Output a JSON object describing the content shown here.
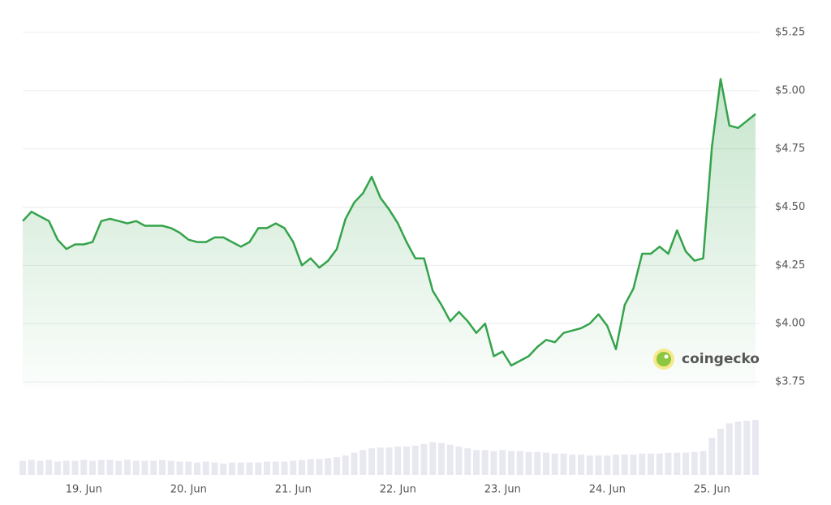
{
  "chart_data": {
    "type": "line",
    "categories": [
      null,
      null,
      null,
      null,
      null,
      null,
      null,
      "19. Jun",
      null,
      null,
      null,
      null,
      null,
      null,
      null,
      null,
      null,
      null,
      null,
      "20. Jun",
      null,
      null,
      null,
      null,
      null,
      null,
      null,
      null,
      null,
      null,
      null,
      "21. Jun",
      null,
      null,
      null,
      null,
      null,
      null,
      null,
      null,
      null,
      null,
      null,
      "22. Jun",
      null,
      null,
      null,
      null,
      null,
      null,
      null,
      null,
      null,
      null,
      null,
      "23. Jun",
      null,
      null,
      null,
      null,
      null,
      null,
      null,
      null,
      null,
      null,
      null,
      "24. Jun",
      null,
      null,
      null,
      null,
      null,
      null,
      null,
      null,
      null,
      null,
      null,
      "25. Jun",
      null,
      null,
      null,
      null,
      null
    ],
    "series": [
      {
        "color": "#34a34a",
        "values": [
          4.44,
          4.48,
          4.46,
          4.44,
          4.36,
          4.32,
          4.34,
          4.34,
          4.35,
          4.44,
          4.45,
          4.44,
          4.43,
          4.44,
          4.42,
          4.42,
          4.42,
          4.41,
          4.39,
          4.36,
          4.35,
          4.35,
          4.37,
          4.37,
          4.35,
          4.33,
          4.35,
          4.41,
          4.41,
          4.43,
          4.41,
          4.35,
          4.25,
          4.28,
          4.24,
          4.27,
          4.32,
          4.45,
          4.52,
          4.56,
          4.63,
          4.54,
          4.49,
          4.43,
          4.35,
          4.28,
          4.28,
          4.14,
          4.08,
          4.01,
          4.05,
          4.01,
          3.96,
          4.0,
          3.86,
          3.88,
          3.82,
          3.84,
          3.86,
          3.9,
          3.93,
          3.92,
          3.96,
          3.97,
          3.98,
          4.0,
          4.04,
          3.99,
          3.89,
          4.08,
          4.15,
          4.3,
          4.3,
          4.33,
          4.3,
          4.4,
          4.31,
          4.27,
          4.28,
          4.76,
          5.05,
          4.85,
          4.84,
          4.87,
          4.9
        ]
      }
    ],
    "volume": [
      16,
      17,
      16,
      17,
      15,
      16,
      16,
      17,
      16,
      17,
      17,
      16,
      17,
      16,
      16,
      16,
      17,
      16,
      15,
      15,
      14,
      15,
      14,
      13,
      14,
      14,
      14,
      14,
      15,
      15,
      15,
      16,
      17,
      18,
      18,
      19,
      20,
      22,
      25,
      28,
      30,
      31,
      31,
      32,
      32,
      33,
      35,
      37,
      36,
      34,
      32,
      30,
      28,
      28,
      27,
      28,
      27,
      27,
      26,
      26,
      25,
      24,
      24,
      23,
      23,
      22,
      22,
      22,
      23,
      23,
      23,
      24,
      24,
      24,
      25,
      25,
      25,
      26,
      27,
      42,
      52,
      58,
      60,
      61,
      62
    ],
    "volume_color": "#e8e8f1",
    "ylim": [
      3.75,
      5.25
    ],
    "yticks": [
      {
        "value": 3.75,
        "label": "$3.75"
      },
      {
        "value": 4.0,
        "label": "$4.00"
      },
      {
        "value": 4.25,
        "label": "$4.25"
      },
      {
        "value": 4.5,
        "label": "$4.50"
      },
      {
        "value": 4.75,
        "label": "$4.75"
      },
      {
        "value": 5.0,
        "label": "$5.00"
      },
      {
        "value": 5.25,
        "label": "$5.25"
      }
    ],
    "grid": true,
    "watermark": "coingecko"
  }
}
